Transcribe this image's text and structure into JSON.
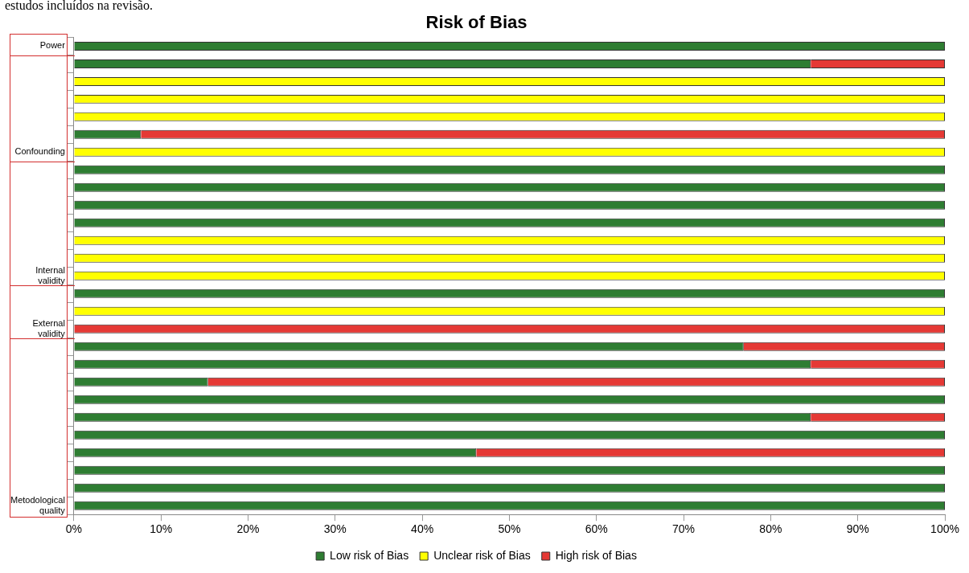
{
  "chart_data": {
    "type": "bar",
    "orientation": "horizontal",
    "stacked": true,
    "title": "Risk of Bias",
    "annotations": [
      "estudos incluídos na revisão."
    ],
    "categories": [
      "Power",
      null,
      null,
      null,
      null,
      null,
      "Confounding",
      null,
      null,
      null,
      null,
      null,
      null,
      "Internal validity",
      null,
      null,
      "External validity",
      null,
      null,
      null,
      null,
      null,
      null,
      null,
      null,
      null,
      "Metodological quality"
    ],
    "series": [
      {
        "name": "Low risk of Bias",
        "color": "#2e7d32",
        "values": [
          100,
          84.6,
          0,
          0,
          0,
          7.7,
          0,
          100,
          100,
          100,
          100,
          0,
          0,
          0,
          100,
          0,
          0,
          76.9,
          84.6,
          15.4,
          100,
          84.6,
          100,
          46.2,
          100,
          100,
          100
        ]
      },
      {
        "name": "Unclear risk of Bias",
        "color": "#ffff00",
        "values": [
          0,
          0,
          100,
          100,
          100,
          0,
          100,
          0,
          0,
          0,
          0,
          100,
          100,
          100,
          0,
          100,
          0,
          0,
          0,
          0,
          0,
          0,
          0,
          0,
          0,
          0,
          0
        ]
      },
      {
        "name": "High risk of Bias",
        "color": "#e53935",
        "values": [
          0,
          15.4,
          0,
          0,
          0,
          92.3,
          0,
          0,
          0,
          0,
          0,
          0,
          0,
          0,
          0,
          0,
          100,
          23.1,
          15.4,
          84.6,
          0,
          15.4,
          0,
          53.8,
          0,
          0,
          0
        ]
      }
    ],
    "xlim": [
      0,
      100
    ],
    "xticks": [
      {
        "value": 0,
        "label": "0%"
      },
      {
        "value": 10,
        "label": "10%"
      },
      {
        "value": 20,
        "label": "20%"
      },
      {
        "value": 30,
        "label": "30%"
      },
      {
        "value": 40,
        "label": "40%"
      },
      {
        "value": 50,
        "label": "50%"
      },
      {
        "value": 60,
        "label": "60%"
      },
      {
        "value": 70,
        "label": "70%"
      },
      {
        "value": 80,
        "label": "80%"
      },
      {
        "value": 90,
        "label": "90%"
      },
      {
        "value": 100,
        "label": "100%"
      }
    ],
    "grid": false,
    "legend": "bottom"
  }
}
